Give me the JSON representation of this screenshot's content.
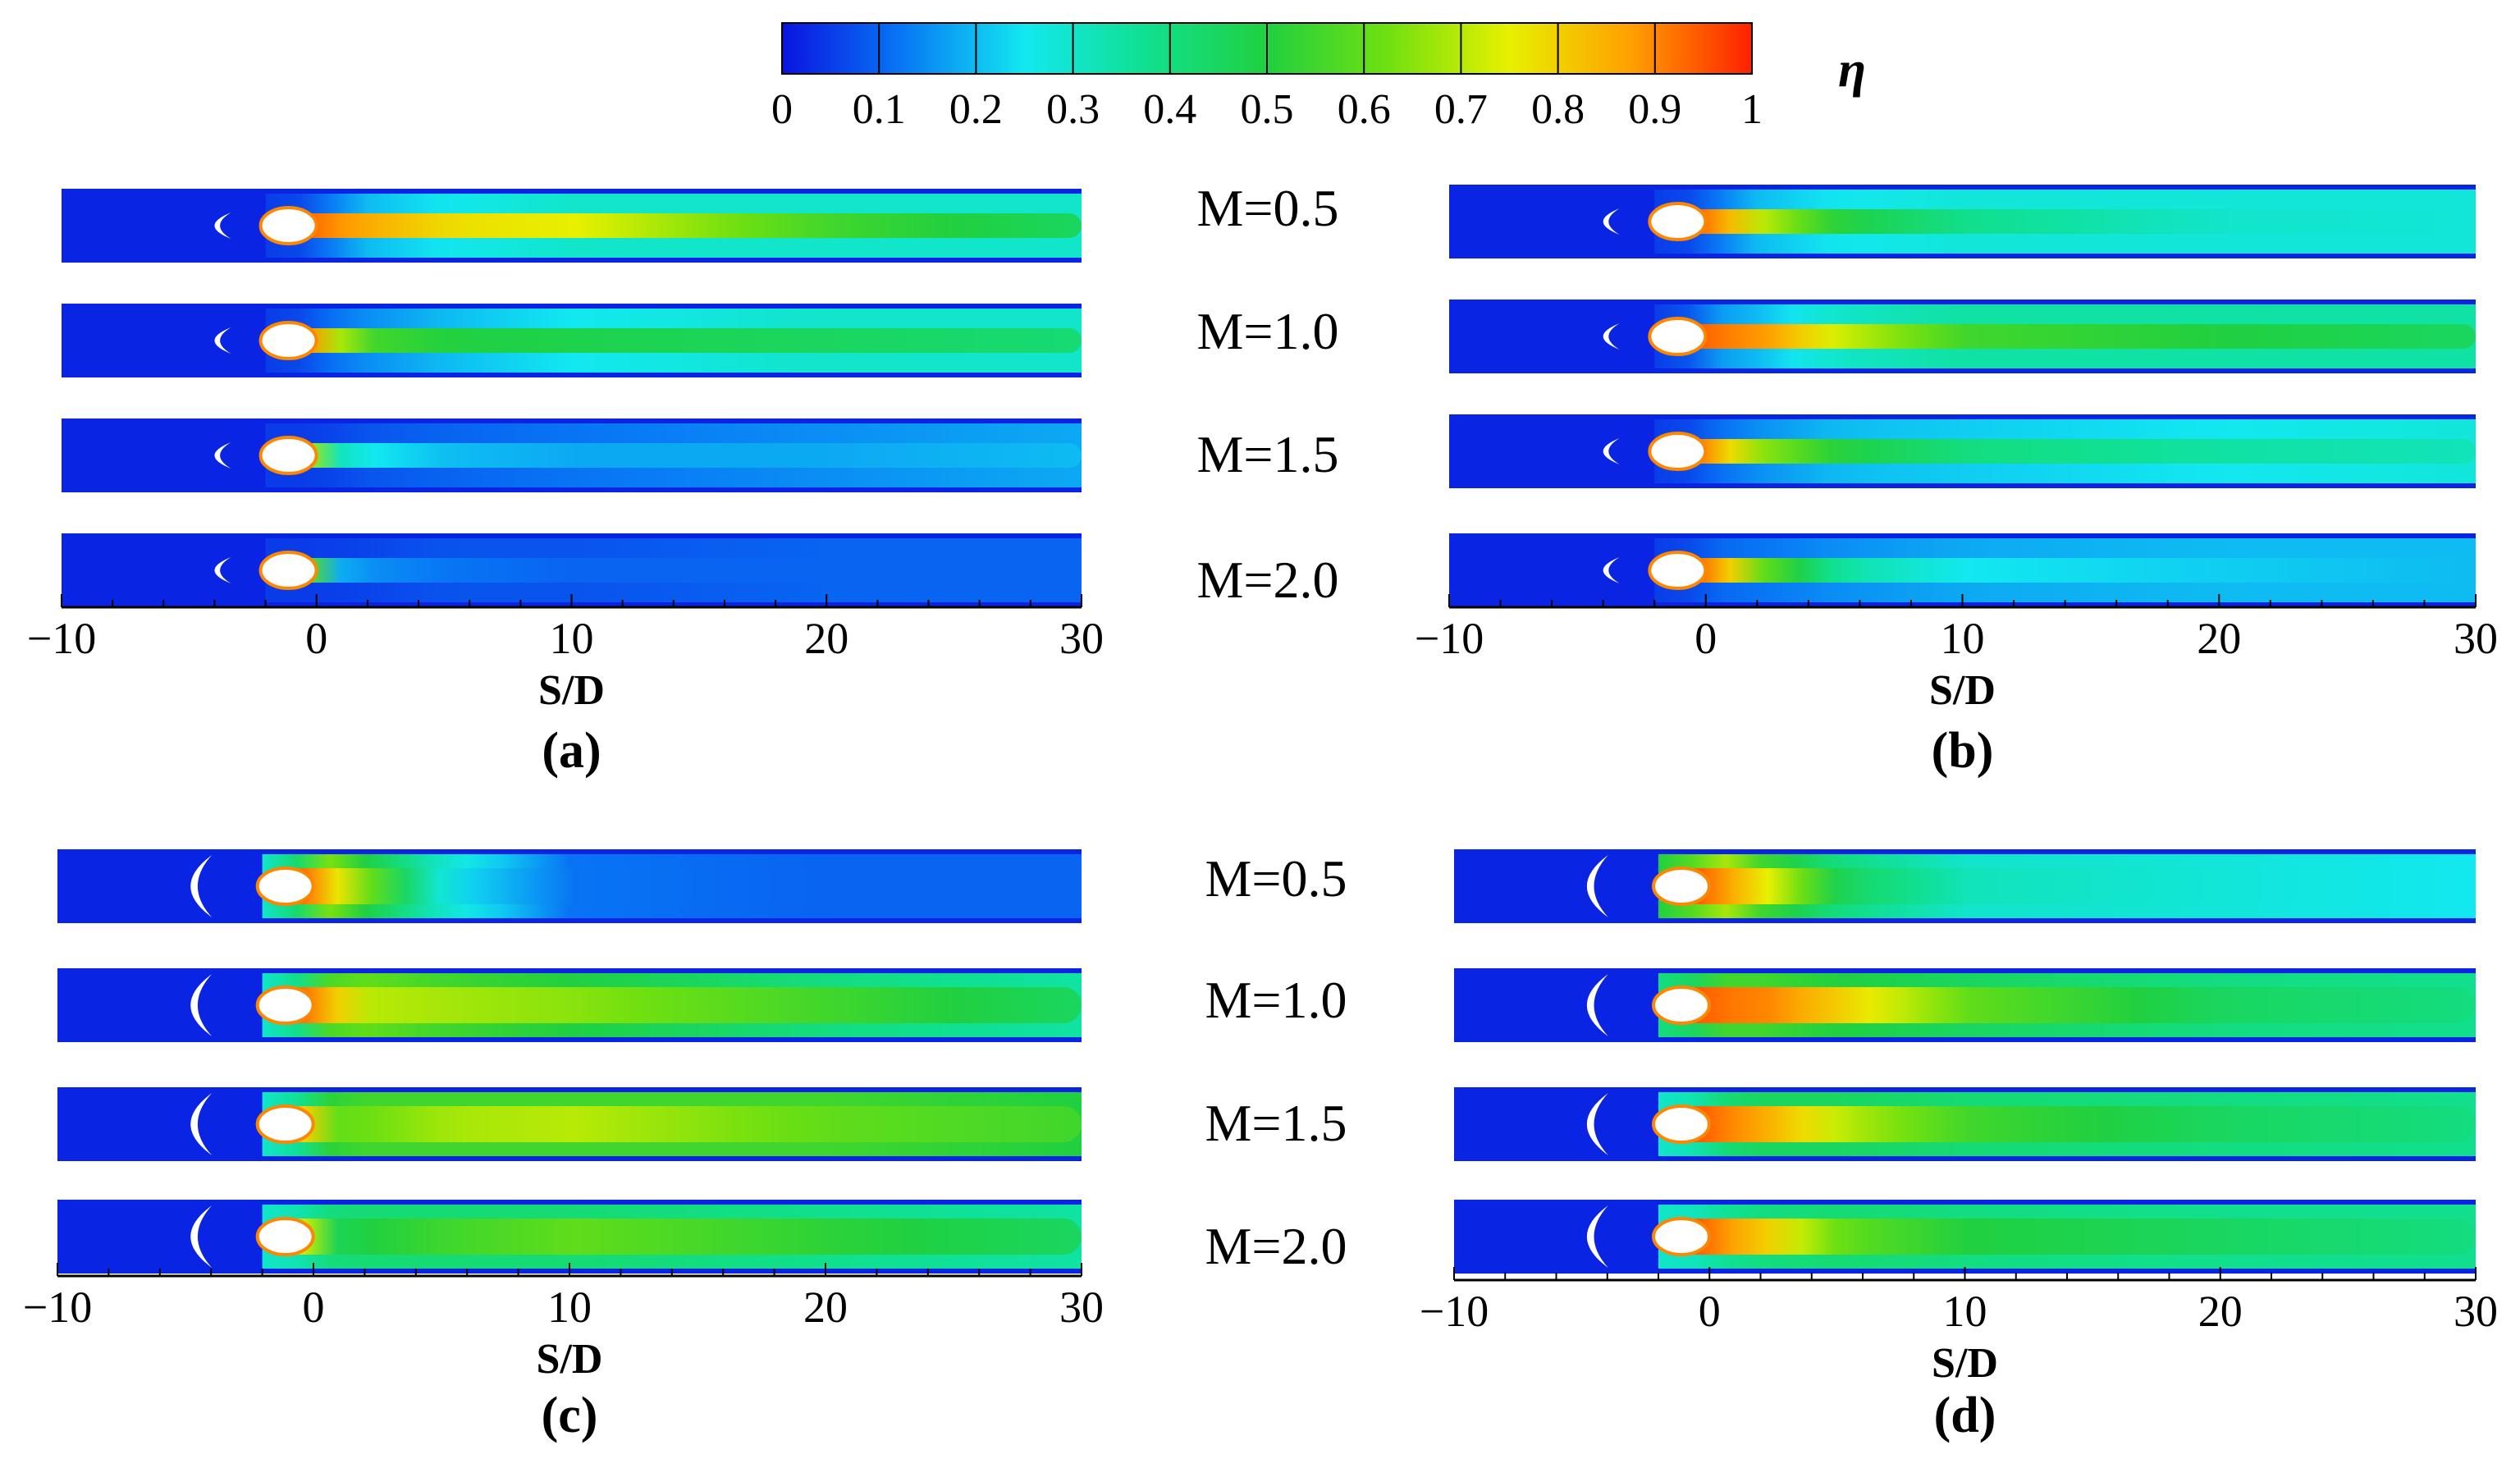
{
  "chart_data": {
    "type": "heatmap",
    "title": "",
    "colorbar": {
      "variable": "η",
      "min": 0,
      "max": 1,
      "tick_labels": [
        "0",
        "0.1",
        "0.2",
        "0.3",
        "0.4",
        "0.5",
        "0.6",
        "0.7",
        "0.8",
        "0.9",
        "1"
      ],
      "colors": [
        "#0a14e0",
        "#0878f5",
        "#12e8f0",
        "#10e090",
        "#20d040",
        "#70e010",
        "#e8f000",
        "#ffa000",
        "#ff2000"
      ]
    },
    "x_axis": {
      "label": "S/D",
      "range": [
        -10,
        30
      ],
      "ticks": [
        -10,
        0,
        10,
        20,
        30
      ],
      "tick_labels": [
        "−10",
        "0",
        "10",
        "20",
        "30"
      ]
    },
    "blowing_ratios": [
      "M=0.5",
      "M=1.0",
      "M=1.5",
      "M=2.0"
    ],
    "panels": [
      {
        "label": "(a)",
        "series": [
          {
            "name": "M=0.5",
            "eta": {
              "S/D": [
                -1,
                0,
                2,
                5,
                10,
                20,
                30
              ],
              "centerline": [
                0.95,
                0.9,
                0.85,
                0.78,
                0.75,
                0.55,
                0.45
              ],
              "spanwise_edge": [
                0.05,
                0.1,
                0.2,
                0.25,
                0.3,
                0.3,
                0.3
              ]
            }
          },
          {
            "name": "M=1.0",
            "eta": {
              "S/D": [
                -1,
                0,
                2,
                5,
                10,
                20,
                30
              ],
              "centerline": [
                0.95,
                0.75,
                0.55,
                0.5,
                0.48,
                0.45,
                0.42
              ],
              "spanwise_edge": [
                0.05,
                0.1,
                0.15,
                0.2,
                0.25,
                0.3,
                0.3
              ]
            }
          },
          {
            "name": "M=1.5",
            "eta": {
              "S/D": [
                -1,
                0,
                2,
                5,
                10,
                20,
                30
              ],
              "centerline": [
                0.85,
                0.35,
                0.25,
                0.2,
                0.18,
                0.18,
                0.2
              ],
              "spanwise_edge": [
                0.05,
                0.05,
                0.08,
                0.1,
                0.12,
                0.15,
                0.18
              ]
            }
          },
          {
            "name": "M=2.0",
            "eta": {
              "S/D": [
                -1,
                0,
                2,
                5,
                10,
                20,
                30
              ],
              "centerline": [
                0.8,
                0.2,
                0.15,
                0.12,
                0.1,
                0.1,
                0.1
              ],
              "spanwise_edge": [
                0.05,
                0.05,
                0.06,
                0.08,
                0.08,
                0.1,
                0.1
              ]
            }
          }
        ]
      },
      {
        "label": "(b)",
        "series": [
          {
            "name": "M=0.5",
            "eta": {
              "S/D": [
                -1,
                0,
                2,
                5,
                10,
                20,
                30
              ],
              "centerline": [
                0.95,
                0.9,
                0.7,
                0.5,
                0.38,
                0.3,
                0.28
              ],
              "spanwise_edge": [
                0.05,
                0.1,
                0.2,
                0.25,
                0.28,
                0.28,
                0.28
              ]
            }
          },
          {
            "name": "M=1.0",
            "eta": {
              "S/D": [
                -1,
                0,
                2,
                5,
                10,
                20,
                30
              ],
              "centerline": [
                0.95,
                0.92,
                0.88,
                0.72,
                0.55,
                0.5,
                0.45
              ],
              "spanwise_edge": [
                0.05,
                0.15,
                0.2,
                0.3,
                0.35,
                0.35,
                0.35
              ]
            }
          },
          {
            "name": "M=1.5",
            "eta": {
              "S/D": [
                -1,
                0,
                2,
                5,
                10,
                20,
                30
              ],
              "centerline": [
                0.95,
                0.85,
                0.65,
                0.5,
                0.4,
                0.35,
                0.32
              ],
              "spanwise_edge": [
                0.05,
                0.1,
                0.15,
                0.2,
                0.22,
                0.25,
                0.28
              ]
            }
          },
          {
            "name": "M=2.0",
            "eta": {
              "S/D": [
                -1,
                0,
                2,
                5,
                10,
                20,
                30
              ],
              "centerline": [
                0.95,
                0.9,
                0.6,
                0.35,
                0.25,
                0.22,
                0.2
              ],
              "spanwise_edge": [
                0.05,
                0.1,
                0.12,
                0.15,
                0.18,
                0.2,
                0.2
              ]
            }
          }
        ]
      },
      {
        "label": "(c)",
        "series": [
          {
            "name": "M=0.5",
            "eta": {
              "S/D": [
                -1,
                0,
                2,
                5,
                10,
                20,
                30
              ],
              "centerline": [
                0.95,
                0.85,
                0.6,
                0.25,
                0.12,
                0.1,
                0.1
              ],
              "spanwise_edge": [
                0.3,
                0.7,
                0.5,
                0.3,
                0.12,
                0.1,
                0.1
              ]
            }
          },
          {
            "name": "M=1.0",
            "eta": {
              "S/D": [
                -1,
                0,
                2,
                5,
                10,
                20,
                30
              ],
              "centerline": [
                0.95,
                0.85,
                0.7,
                0.68,
                0.65,
                0.55,
                0.45
              ],
              "spanwise_edge": [
                0.3,
                0.55,
                0.6,
                0.55,
                0.5,
                0.4,
                0.35
              ]
            }
          },
          {
            "name": "M=1.5",
            "eta": {
              "S/D": [
                -1,
                0,
                2,
                5,
                10,
                20,
                30
              ],
              "centerline": [
                0.9,
                0.6,
                0.62,
                0.68,
                0.7,
                0.6,
                0.55
              ],
              "spanwise_edge": [
                0.3,
                0.5,
                0.55,
                0.55,
                0.55,
                0.55,
                0.5
              ]
            }
          },
          {
            "name": "M=2.0",
            "eta": {
              "S/D": [
                -1,
                0,
                2,
                5,
                10,
                20,
                30
              ],
              "centerline": [
                0.85,
                0.45,
                0.5,
                0.55,
                0.6,
                0.52,
                0.45
              ],
              "spanwise_edge": [
                0.3,
                0.4,
                0.42,
                0.42,
                0.42,
                0.38,
                0.35
              ]
            }
          }
        ]
      },
      {
        "label": "(d)",
        "series": [
          {
            "name": "M=0.5",
            "eta": {
              "S/D": [
                -1,
                0,
                2,
                5,
                10,
                20,
                30
              ],
              "centerline": [
                0.95,
                0.9,
                0.75,
                0.45,
                0.32,
                0.28,
                0.25
              ],
              "spanwise_edge": [
                0.5,
                0.75,
                0.55,
                0.4,
                0.3,
                0.28,
                0.25
              ]
            }
          },
          {
            "name": "M=1.0",
            "eta": {
              "S/D": [
                -1,
                0,
                2,
                5,
                10,
                20,
                30
              ],
              "centerline": [
                0.95,
                0.92,
                0.9,
                0.8,
                0.6,
                0.45,
                0.4
              ],
              "spanwise_edge": [
                0.4,
                0.55,
                0.55,
                0.5,
                0.45,
                0.4,
                0.38
              ]
            }
          },
          {
            "name": "M=1.5",
            "eta": {
              "S/D": [
                -1,
                0,
                2,
                5,
                10,
                20,
                30
              ],
              "centerline": [
                0.95,
                0.92,
                0.85,
                0.7,
                0.55,
                0.45,
                0.4
              ],
              "spanwise_edge": [
                0.3,
                0.4,
                0.45,
                0.45,
                0.42,
                0.4,
                0.38
              ]
            }
          },
          {
            "name": "M=2.0",
            "eta": {
              "S/D": [
                -1,
                0,
                2,
                5,
                10,
                20,
                30
              ],
              "centerline": [
                0.95,
                0.9,
                0.8,
                0.6,
                0.5,
                0.45,
                0.4
              ],
              "spanwise_edge": [
                0.3,
                0.35,
                0.4,
                0.42,
                0.4,
                0.38,
                0.38
              ]
            }
          }
        ]
      }
    ]
  }
}
